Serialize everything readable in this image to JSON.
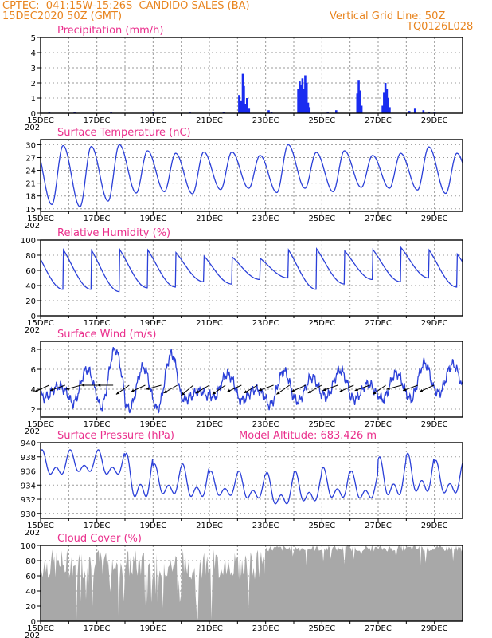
{
  "header": {
    "line1": "CPTEC:  041:15W-15:26S  CANDIDO SALES (BA)",
    "line2": "15DEC2020 50Z (GMT)",
    "grid_note": "Vertical Grid Line: 50Z",
    "model_id": "TQ0126L028"
  },
  "colors": {
    "header": "#e8841e",
    "title": "#ea2f8c",
    "line": "#2a3fd8",
    "bars": "#1a2cf0",
    "cloud": "#a8a8a8"
  },
  "x_labels": [
    "15DEC",
    "17DEC",
    "19DEC",
    "21DEC",
    "23DEC",
    "25DEC",
    "27DEC",
    "29DEC"
  ],
  "year_fragment": "202",
  "model_altitude": "Model Altitude: 683.426 m",
  "chart_data": [
    {
      "type": "bar",
      "title": "Precipitation (mm/h)",
      "ylim": [
        0,
        5
      ],
      "yticks": [
        "0",
        "1",
        "2",
        "3",
        "4",
        "5"
      ],
      "x_unit": "day since 15DEC",
      "bars": [
        [
          7.05,
          1.2
        ],
        [
          7.12,
          0.8
        ],
        [
          7.18,
          2.6
        ],
        [
          7.22,
          1.8
        ],
        [
          7.28,
          0.6
        ],
        [
          7.33,
          1.0
        ],
        [
          7.4,
          0.3
        ],
        [
          8.1,
          0.2
        ],
        [
          8.2,
          0.1
        ],
        [
          9.15,
          1.6
        ],
        [
          9.2,
          2.1
        ],
        [
          9.25,
          1.9
        ],
        [
          9.3,
          2.3
        ],
        [
          9.35,
          1.6
        ],
        [
          9.4,
          2.5
        ],
        [
          9.45,
          2.0
        ],
        [
          9.5,
          0.7
        ],
        [
          9.55,
          0.4
        ],
        [
          10.2,
          0.1
        ],
        [
          10.5,
          0.2
        ],
        [
          11.25,
          1.3
        ],
        [
          11.3,
          2.2
        ],
        [
          11.35,
          1.5
        ],
        [
          11.4,
          0.5
        ],
        [
          12.15,
          0.5
        ],
        [
          12.2,
          1.4
        ],
        [
          12.25,
          2.0
        ],
        [
          12.3,
          1.6
        ],
        [
          12.35,
          1.0
        ],
        [
          12.4,
          0.4
        ],
        [
          13.1,
          0.15
        ],
        [
          13.3,
          0.3
        ],
        [
          13.6,
          0.2
        ],
        [
          13.8,
          0.1
        ],
        [
          0.3,
          0.05
        ],
        [
          1.2,
          0.05
        ],
        [
          2.5,
          0.05
        ],
        [
          4.0,
          0.05
        ],
        [
          5.3,
          0.05
        ],
        [
          6.5,
          0.1
        ],
        [
          14.0,
          0.1
        ]
      ]
    },
    {
      "type": "line",
      "title": "Surface Temperature (nC)",
      "ylim": [
        14.4,
        31.2
      ],
      "yticks": [
        15,
        18,
        21,
        24,
        27,
        30
      ],
      "min": [
        16.0,
        15.5,
        16.8,
        18.7,
        19.0,
        18.5,
        19.5,
        19.8,
        18.8,
        19.8,
        19.0,
        20.0,
        19.8,
        19.4,
        18.6
      ],
      "max": [
        29.8,
        29.6,
        30.0,
        28.6,
        28.0,
        28.3,
        28.3,
        27.5,
        30.0,
        28.2,
        28.6,
        27.5,
        28.0,
        29.5,
        28.0
      ]
    },
    {
      "type": "line",
      "title": "Relative Humidity (%)",
      "ylim": [
        0,
        100
      ],
      "yticks": [
        0,
        20,
        40,
        60,
        80,
        100
      ],
      "min": [
        35,
        35,
        32,
        37,
        38,
        45,
        42,
        48,
        50,
        35,
        42,
        48,
        45,
        50,
        38
      ],
      "max": [
        100,
        100,
        100,
        99,
        93,
        88,
        85,
        82,
        100,
        100,
        95,
        98,
        100,
        99,
        92
      ]
    },
    {
      "type": "line",
      "title": "Surface Wind (m/s)",
      "ylim": [
        1.2,
        8.8
      ],
      "yticks": [
        2,
        4,
        6,
        8
      ],
      "speed_days": [
        4.3,
        6.0,
        8.0,
        6.2,
        7.5,
        3.8,
        5.5,
        4.0,
        5.8,
        5.2,
        5.9,
        4.5,
        5.6,
        6.6,
        6.5,
        5.5
      ],
      "speed_nights": [
        3.2,
        2.6,
        2.2,
        2.0,
        2.0,
        3.0,
        3.2,
        2.9,
        2.4,
        2.8,
        3.2,
        3.0,
        3.0,
        3.0,
        3.6
      ],
      "arrow_angles_deg": [
        205,
        200,
        195,
        180,
        180,
        215,
        205,
        195,
        210,
        220,
        210,
        215,
        205,
        210,
        200,
        215,
        205,
        210,
        200,
        205,
        200,
        215,
        195,
        200,
        205
      ]
    },
    {
      "type": "line",
      "title": "Surface Pressure (hPa)",
      "ylim": [
        929.3,
        940
      ],
      "yticks": [
        930,
        932,
        934,
        936,
        938,
        940
      ],
      "max": [
        939.0,
        939.0,
        939.0,
        938.5,
        937.0,
        937.0,
        936.0,
        936.0,
        935.8,
        936.0,
        936.5,
        936.0,
        938.0,
        938.5,
        937.5
      ],
      "min": [
        934.5,
        935.0,
        934.5,
        930.5,
        931.5,
        931.0,
        931.5,
        931.0,
        930.0,
        930.5,
        931.0,
        931.0,
        931.0,
        931.5,
        931.5
      ]
    },
    {
      "type": "area",
      "title": "Cloud Cover (%)",
      "ylim": [
        0,
        100
      ],
      "yticks": [
        0,
        20,
        40,
        60,
        80,
        100
      ]
    }
  ]
}
